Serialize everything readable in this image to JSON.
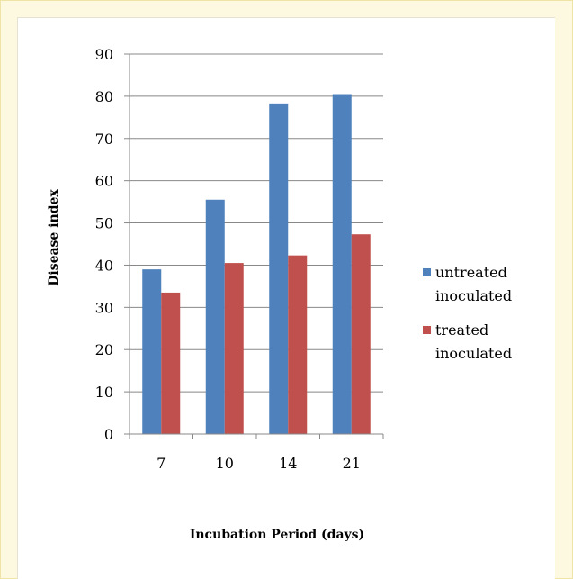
{
  "chart_data": {
    "type": "bar",
    "title": "",
    "xlabel": "Incubation Period (days)",
    "ylabel": "Disease index",
    "categories": [
      "7",
      "10",
      "14",
      "21"
    ],
    "ylim": [
      0,
      90
    ],
    "yticks": [
      "0",
      "10",
      "20",
      "30",
      "40",
      "50",
      "60",
      "70",
      "80",
      "90"
    ],
    "grid": "horizontal",
    "legend_position": "right",
    "series": [
      {
        "name_lines": [
          "untreated",
          "inoculated"
        ],
        "color": "#4f81bd",
        "values": [
          39,
          55.5,
          78.3,
          80.5
        ]
      },
      {
        "name_lines": [
          "treated",
          "inoculated"
        ],
        "color": "#c0504d",
        "values": [
          33.5,
          40.5,
          42.3,
          47.3
        ]
      }
    ]
  }
}
